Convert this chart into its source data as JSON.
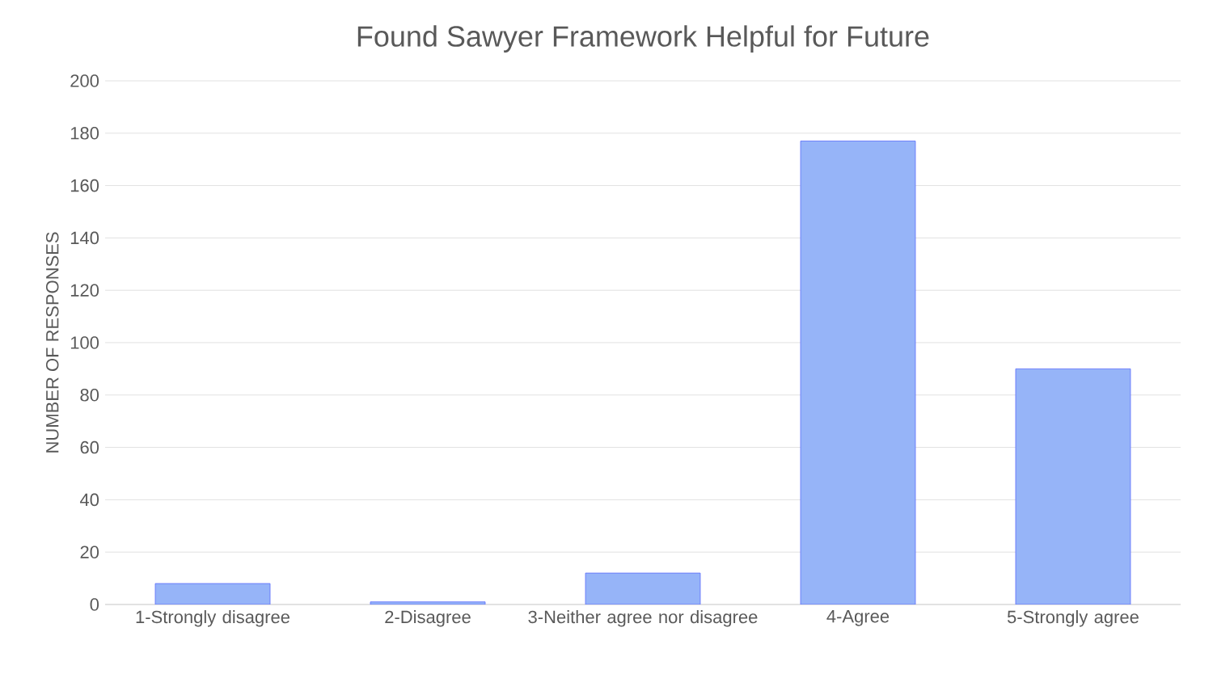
{
  "chart_data": {
    "type": "bar",
    "title": "Found Sawyer Framework Helpful for Future",
    "ylabel": "NUMBER OF RESPONSES",
    "categories": [
      "1-Strongly disagree",
      "2-Disagree",
      "3-Neither agree nor disagree",
      "4-Agree",
      "5-Strongly agree"
    ],
    "values": [
      8,
      1,
      12,
      177,
      90
    ],
    "color": "#96b4f8",
    "ylim": [
      0,
      200
    ],
    "yticks": [
      0,
      20,
      40,
      60,
      80,
      100,
      120,
      140,
      160,
      180,
      200
    ],
    "grid": "y"
  }
}
